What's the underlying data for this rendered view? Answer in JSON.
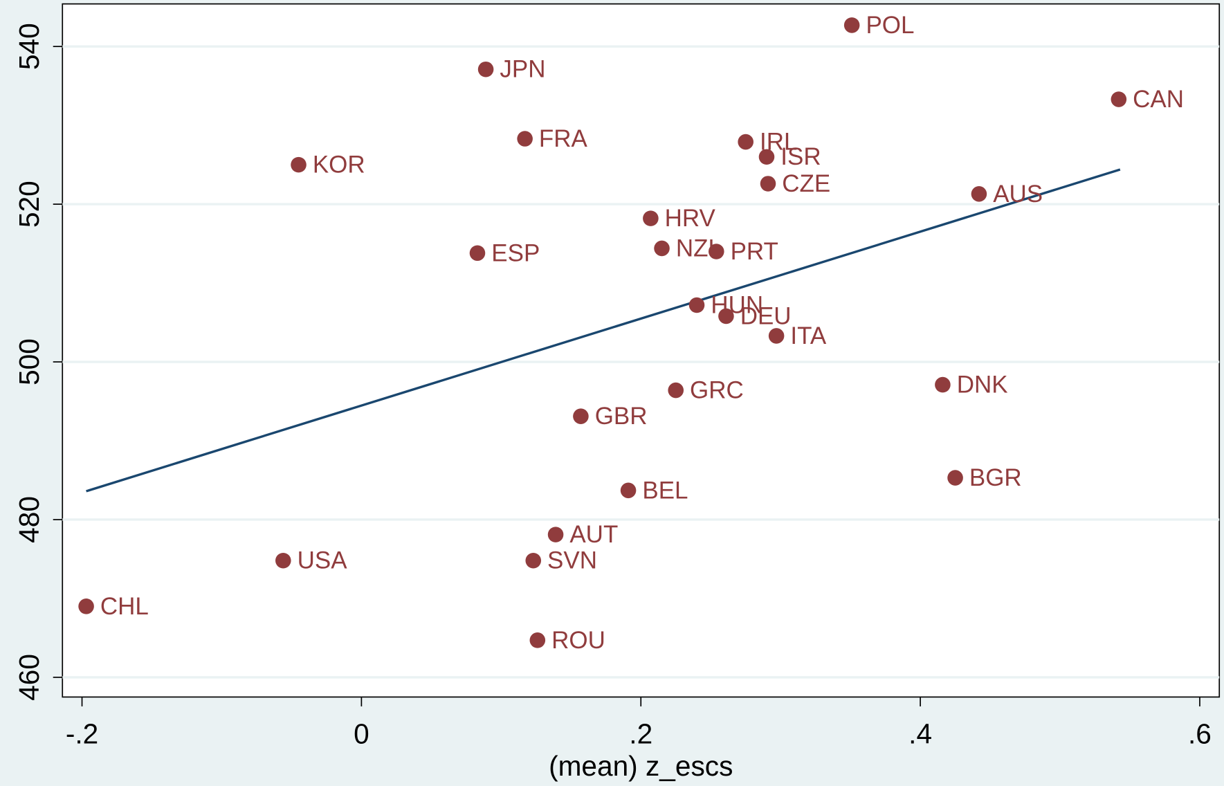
{
  "chart_data": {
    "type": "scatter",
    "x_label": "(mean) z_escs",
    "labels": [
      "POL",
      "JPN",
      "CAN",
      "FRA",
      "IRL",
      "ISR",
      "KOR",
      "CZE",
      "AUS",
      "HRV",
      "ESP",
      "NZL",
      "PRT",
      "HUN",
      "DEU",
      "ITA",
      "GRC",
      "DNK",
      "GBR",
      "BEL",
      "BGR",
      "AUT",
      "USA",
      "SVN",
      "CHL",
      "ROU"
    ],
    "x": [
      0.351,
      0.089,
      0.542,
      0.117,
      0.275,
      0.29,
      -0.045,
      0.291,
      0.442,
      0.207,
      0.083,
      0.215,
      0.254,
      0.24,
      0.261,
      0.297,
      0.225,
      0.416,
      0.157,
      0.191,
      0.425,
      0.139,
      -0.056,
      0.123,
      -0.197,
      0.126
    ],
    "y": [
      542.7,
      537.1,
      533.3,
      528.3,
      527.9,
      526.0,
      525.0,
      522.6,
      521.3,
      518.2,
      513.8,
      514.4,
      514.0,
      507.2,
      505.8,
      503.3,
      496.4,
      497.1,
      493.1,
      483.7,
      485.3,
      478.1,
      474.8,
      474.8,
      469.0,
      464.7
    ],
    "color": "#903c3d",
    "fit_line": {
      "x": [
        -0.197,
        0.543
      ],
      "y": [
        483.6,
        524.4
      ],
      "color": "#1a476f"
    },
    "xlim": [
      -0.214,
      0.614
    ],
    "ylim": [
      457.5,
      545.4
    ],
    "xticks": [
      {
        "value": -0.2,
        "label": "-.2"
      },
      0,
      {
        "value": 0.2,
        "label": ".2"
      },
      {
        "value": 0.4,
        "label": ".4"
      },
      {
        "value": 0.6,
        "label": ".6"
      }
    ],
    "yticks": [
      460,
      480,
      500,
      520,
      540
    ],
    "grid": true
  }
}
